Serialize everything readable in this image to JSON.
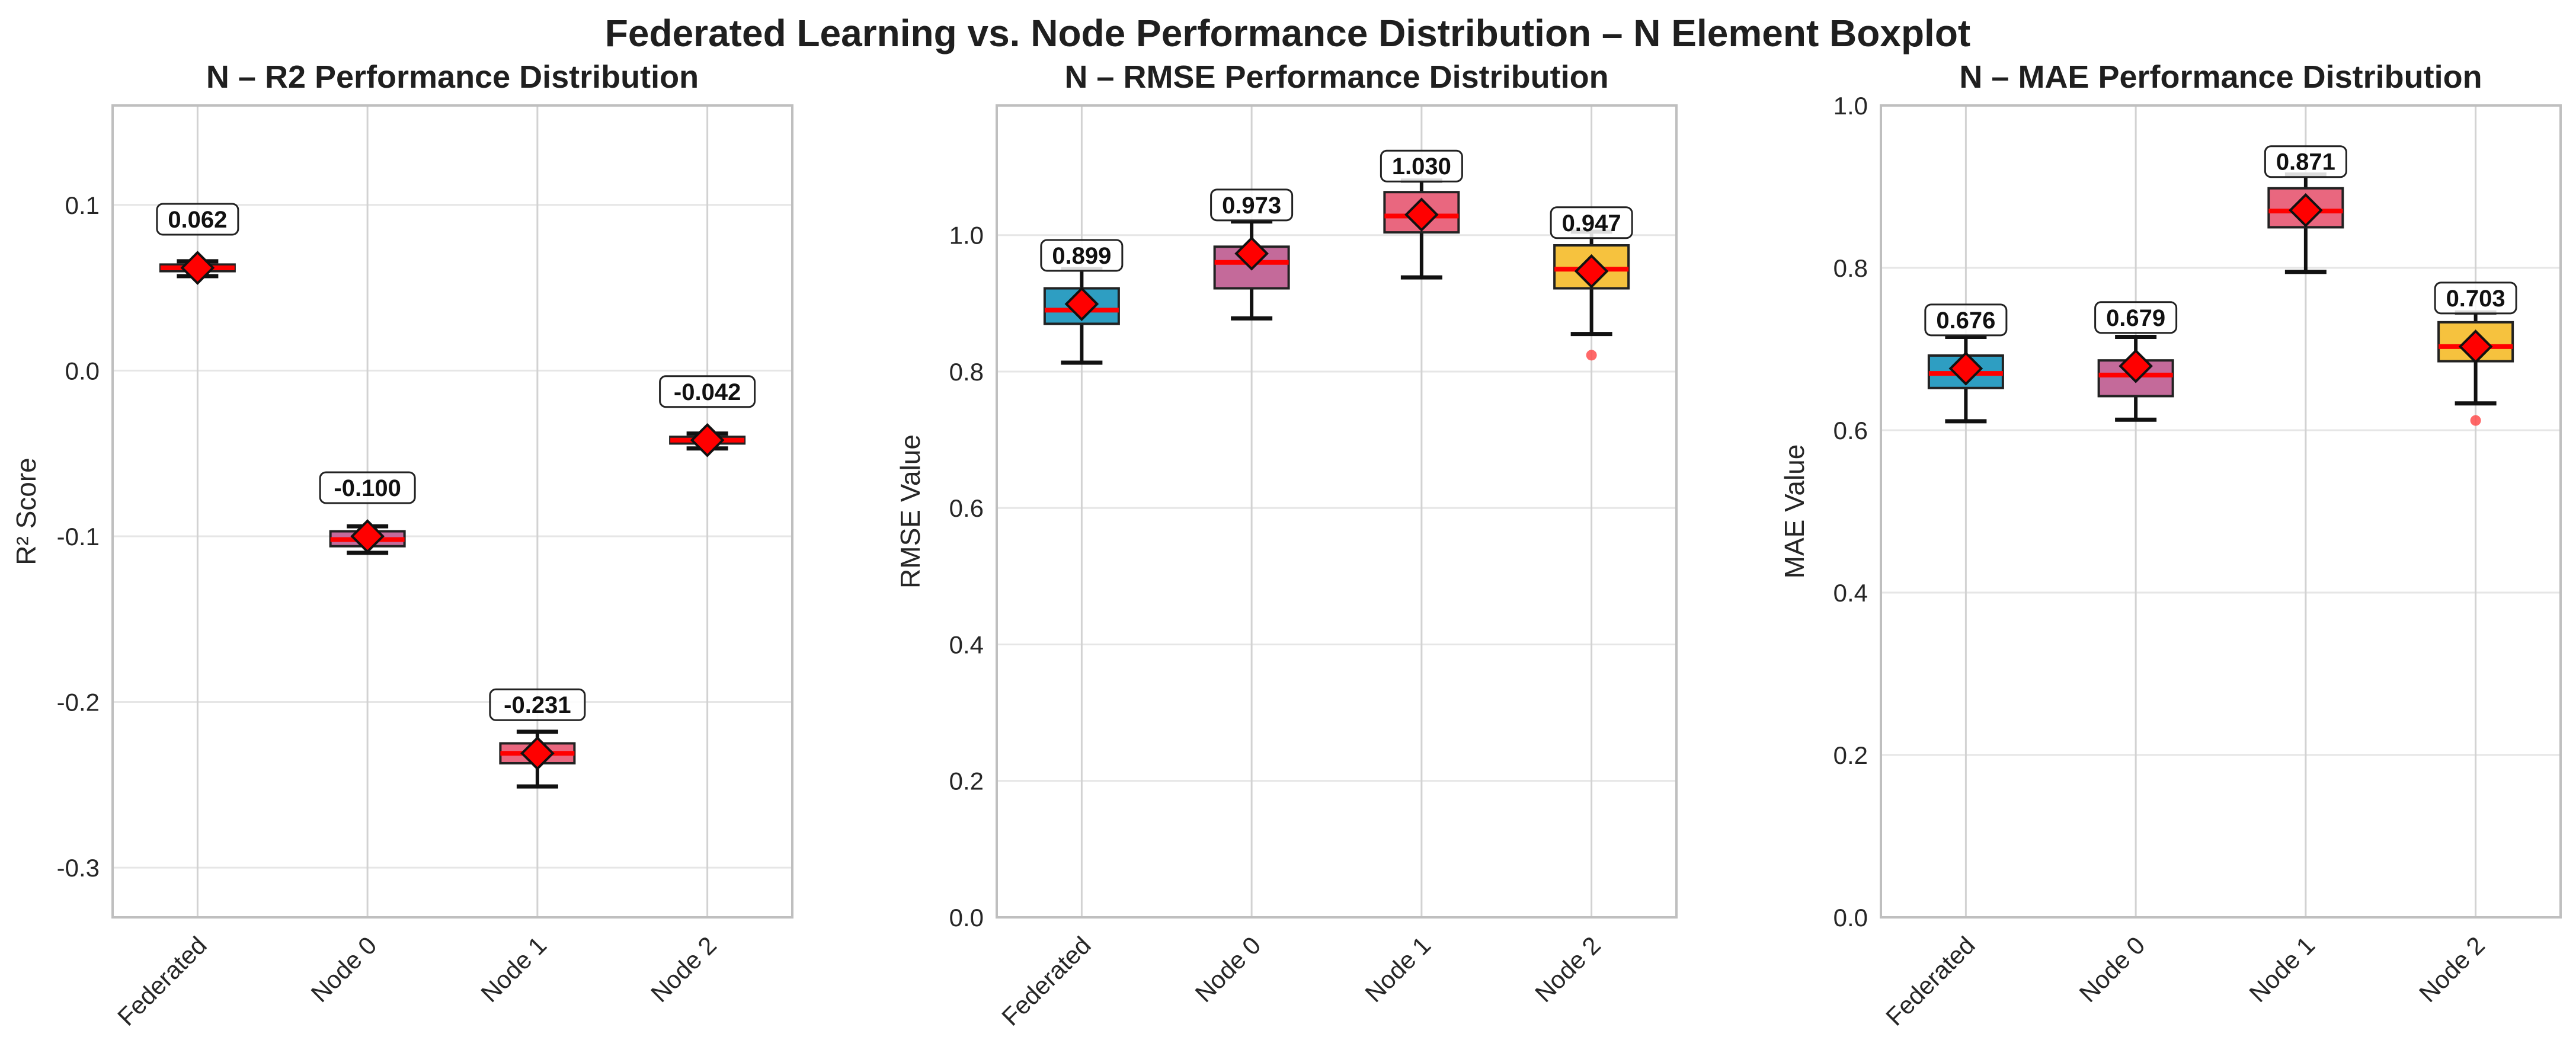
{
  "title": "Federated Learning vs. Node Performance Distribution – N Element Boxplot",
  "colors": {
    "box_fills": [
      "#2e9ec2",
      "#c46a9a",
      "#e9677f",
      "#f6c23e"
    ],
    "median": "#ff0000",
    "mean_marker": "#ff0000",
    "outlier": "#ff4d4d"
  },
  "chart_data": [
    {
      "type": "box",
      "title": "N – R2 Performance Distribution",
      "xlabel": "",
      "ylabel": "R² Score",
      "ylim": [
        -0.33,
        0.16
      ],
      "yticks": [
        0.1,
        0.0,
        -0.1,
        -0.2,
        -0.3
      ],
      "ytick_labels": [
        "0.1",
        "0.0",
        "-0.1",
        "-0.2",
        "-0.3"
      ],
      "grid": true,
      "categories": [
        "Federated",
        "Node 0",
        "Node 1",
        "Node 2"
      ],
      "boxes": [
        {
          "whisker_low": 0.057,
          "q1": 0.06,
          "median": 0.062,
          "q3": 0.064,
          "whisker_high": 0.066,
          "mean": 0.062,
          "mean_label": "0.062",
          "outliers": []
        },
        {
          "whisker_low": -0.11,
          "q1": -0.106,
          "median": -0.102,
          "q3": -0.097,
          "whisker_high": -0.094,
          "mean": -0.1,
          "mean_label": "-0.100",
          "outliers": []
        },
        {
          "whisker_low": -0.251,
          "q1": -0.237,
          "median": -0.231,
          "q3": -0.225,
          "whisker_high": -0.218,
          "mean": -0.231,
          "mean_label": "-0.231",
          "outliers": []
        },
        {
          "whisker_low": -0.047,
          "q1": -0.044,
          "median": -0.042,
          "q3": -0.04,
          "whisker_high": -0.038,
          "mean": -0.042,
          "mean_label": "-0.042",
          "outliers": []
        }
      ]
    },
    {
      "type": "box",
      "title": "N – RMSE Performance Distribution",
      "xlabel": "",
      "ylabel": "RMSE Value",
      "ylim": [
        0.0,
        1.19
      ],
      "yticks": [
        0.0,
        0.2,
        0.4,
        0.6,
        0.8,
        1.0
      ],
      "ytick_labels": [
        "0.0",
        "0.2",
        "0.4",
        "0.6",
        "0.8",
        "1.0"
      ],
      "grid": true,
      "categories": [
        "Federated",
        "Node 0",
        "Node 1",
        "Node 2"
      ],
      "boxes": [
        {
          "whisker_low": 0.813,
          "q1": 0.87,
          "median": 0.89,
          "q3": 0.922,
          "whisker_high": 0.95,
          "mean": 0.899,
          "mean_label": "0.899",
          "outliers": []
        },
        {
          "whisker_low": 0.878,
          "q1": 0.922,
          "median": 0.96,
          "q3": 0.983,
          "whisker_high": 1.02,
          "mean": 0.973,
          "mean_label": "0.973",
          "outliers": []
        },
        {
          "whisker_low": 0.938,
          "q1": 1.004,
          "median": 1.028,
          "q3": 1.063,
          "whisker_high": 1.08,
          "mean": 1.03,
          "mean_label": "1.030",
          "outliers": []
        },
        {
          "whisker_low": 0.855,
          "q1": 0.922,
          "median": 0.95,
          "q3": 0.985,
          "whisker_high": 1.005,
          "mean": 0.947,
          "mean_label": "0.947",
          "outliers": [
            0.824
          ]
        }
      ]
    },
    {
      "type": "box",
      "title": "N – MAE Performance Distribution",
      "xlabel": "",
      "ylabel": "MAE Value",
      "ylim": [
        0.0,
        1.0
      ],
      "yticks": [
        0.0,
        0.2,
        0.4,
        0.6,
        0.8,
        1.0
      ],
      "ytick_labels": [
        "0.0",
        "0.2",
        "0.4",
        "0.6",
        "0.8",
        "1.0"
      ],
      "grid": true,
      "categories": [
        "Federated",
        "Node 0",
        "Node 1",
        "Node 2"
      ],
      "boxes": [
        {
          "whisker_low": 0.611,
          "q1": 0.652,
          "median": 0.67,
          "q3": 0.692,
          "whisker_high": 0.715,
          "mean": 0.676,
          "mean_label": "0.676",
          "outliers": []
        },
        {
          "whisker_low": 0.613,
          "q1": 0.642,
          "median": 0.668,
          "q3": 0.686,
          "whisker_high": 0.715,
          "mean": 0.679,
          "mean_label": "0.679",
          "outliers": []
        },
        {
          "whisker_low": 0.795,
          "q1": 0.85,
          "median": 0.87,
          "q3": 0.898,
          "whisker_high": 0.915,
          "mean": 0.871,
          "mean_label": "0.871",
          "outliers": []
        },
        {
          "whisker_low": 0.633,
          "q1": 0.685,
          "median": 0.703,
          "q3": 0.733,
          "whisker_high": 0.745,
          "mean": 0.703,
          "mean_label": "0.703",
          "outliers": [
            0.612
          ]
        }
      ]
    }
  ]
}
